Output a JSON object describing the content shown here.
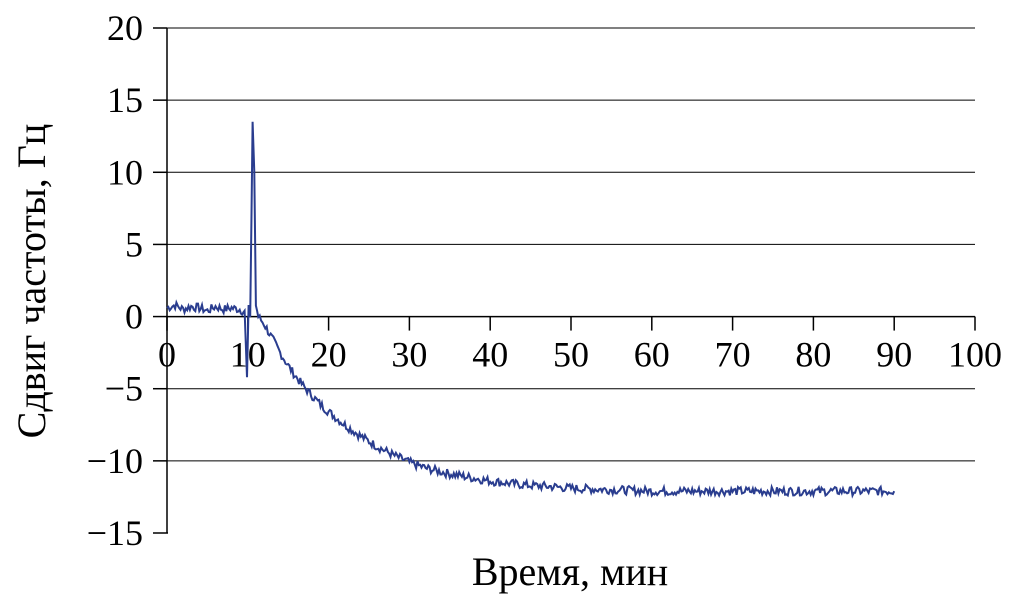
{
  "chart_data": {
    "type": "line",
    "title": "",
    "xlabel": "Время, мин",
    "ylabel": "Сдвиг частоты, Гц",
    "xlim": [
      0,
      100
    ],
    "ylim": [
      -15,
      20
    ],
    "x_ticks": [
      "0",
      "10",
      "20",
      "30",
      "40",
      "50",
      "60",
      "70",
      "80",
      "90",
      "100"
    ],
    "y_ticks": [
      "20",
      "15",
      "10",
      "5",
      "0",
      "−5",
      "−10",
      "−15"
    ],
    "grid": "horizontal",
    "legend": "none",
    "line_color": "#2a3d8f",
    "series": [
      {
        "x": [
          0,
          1,
          2,
          3,
          4,
          5,
          6,
          7,
          8,
          9,
          9.6,
          9.9,
          10.1,
          10.3,
          10.6,
          10.8,
          11.0,
          11.3,
          12,
          13,
          14,
          15,
          16,
          17,
          18,
          19,
          20,
          22,
          24,
          26,
          28,
          30,
          32,
          35,
          38,
          40,
          43,
          45,
          48,
          50,
          55,
          60,
          65,
          70,
          75,
          80,
          85,
          90
        ],
        "y": [
          0.6,
          0.8,
          0.5,
          0.7,
          0.6,
          0.4,
          0.7,
          0.5,
          0.6,
          0.5,
          0.3,
          -4.2,
          0.8,
          -0.3,
          13.5,
          10.0,
          0.8,
          0.0,
          -0.5,
          -1.5,
          -2.5,
          -3.4,
          -4.2,
          -4.9,
          -5.5,
          -6.1,
          -6.6,
          -7.5,
          -8.3,
          -9.0,
          -9.6,
          -10.1,
          -10.5,
          -10.9,
          -11.2,
          -11.4,
          -11.6,
          -11.7,
          -11.8,
          -11.9,
          -12.0,
          -12.1,
          -12.1,
          -12.1,
          -12.1,
          -12.1,
          -12.1,
          -12.1
        ]
      }
    ]
  }
}
